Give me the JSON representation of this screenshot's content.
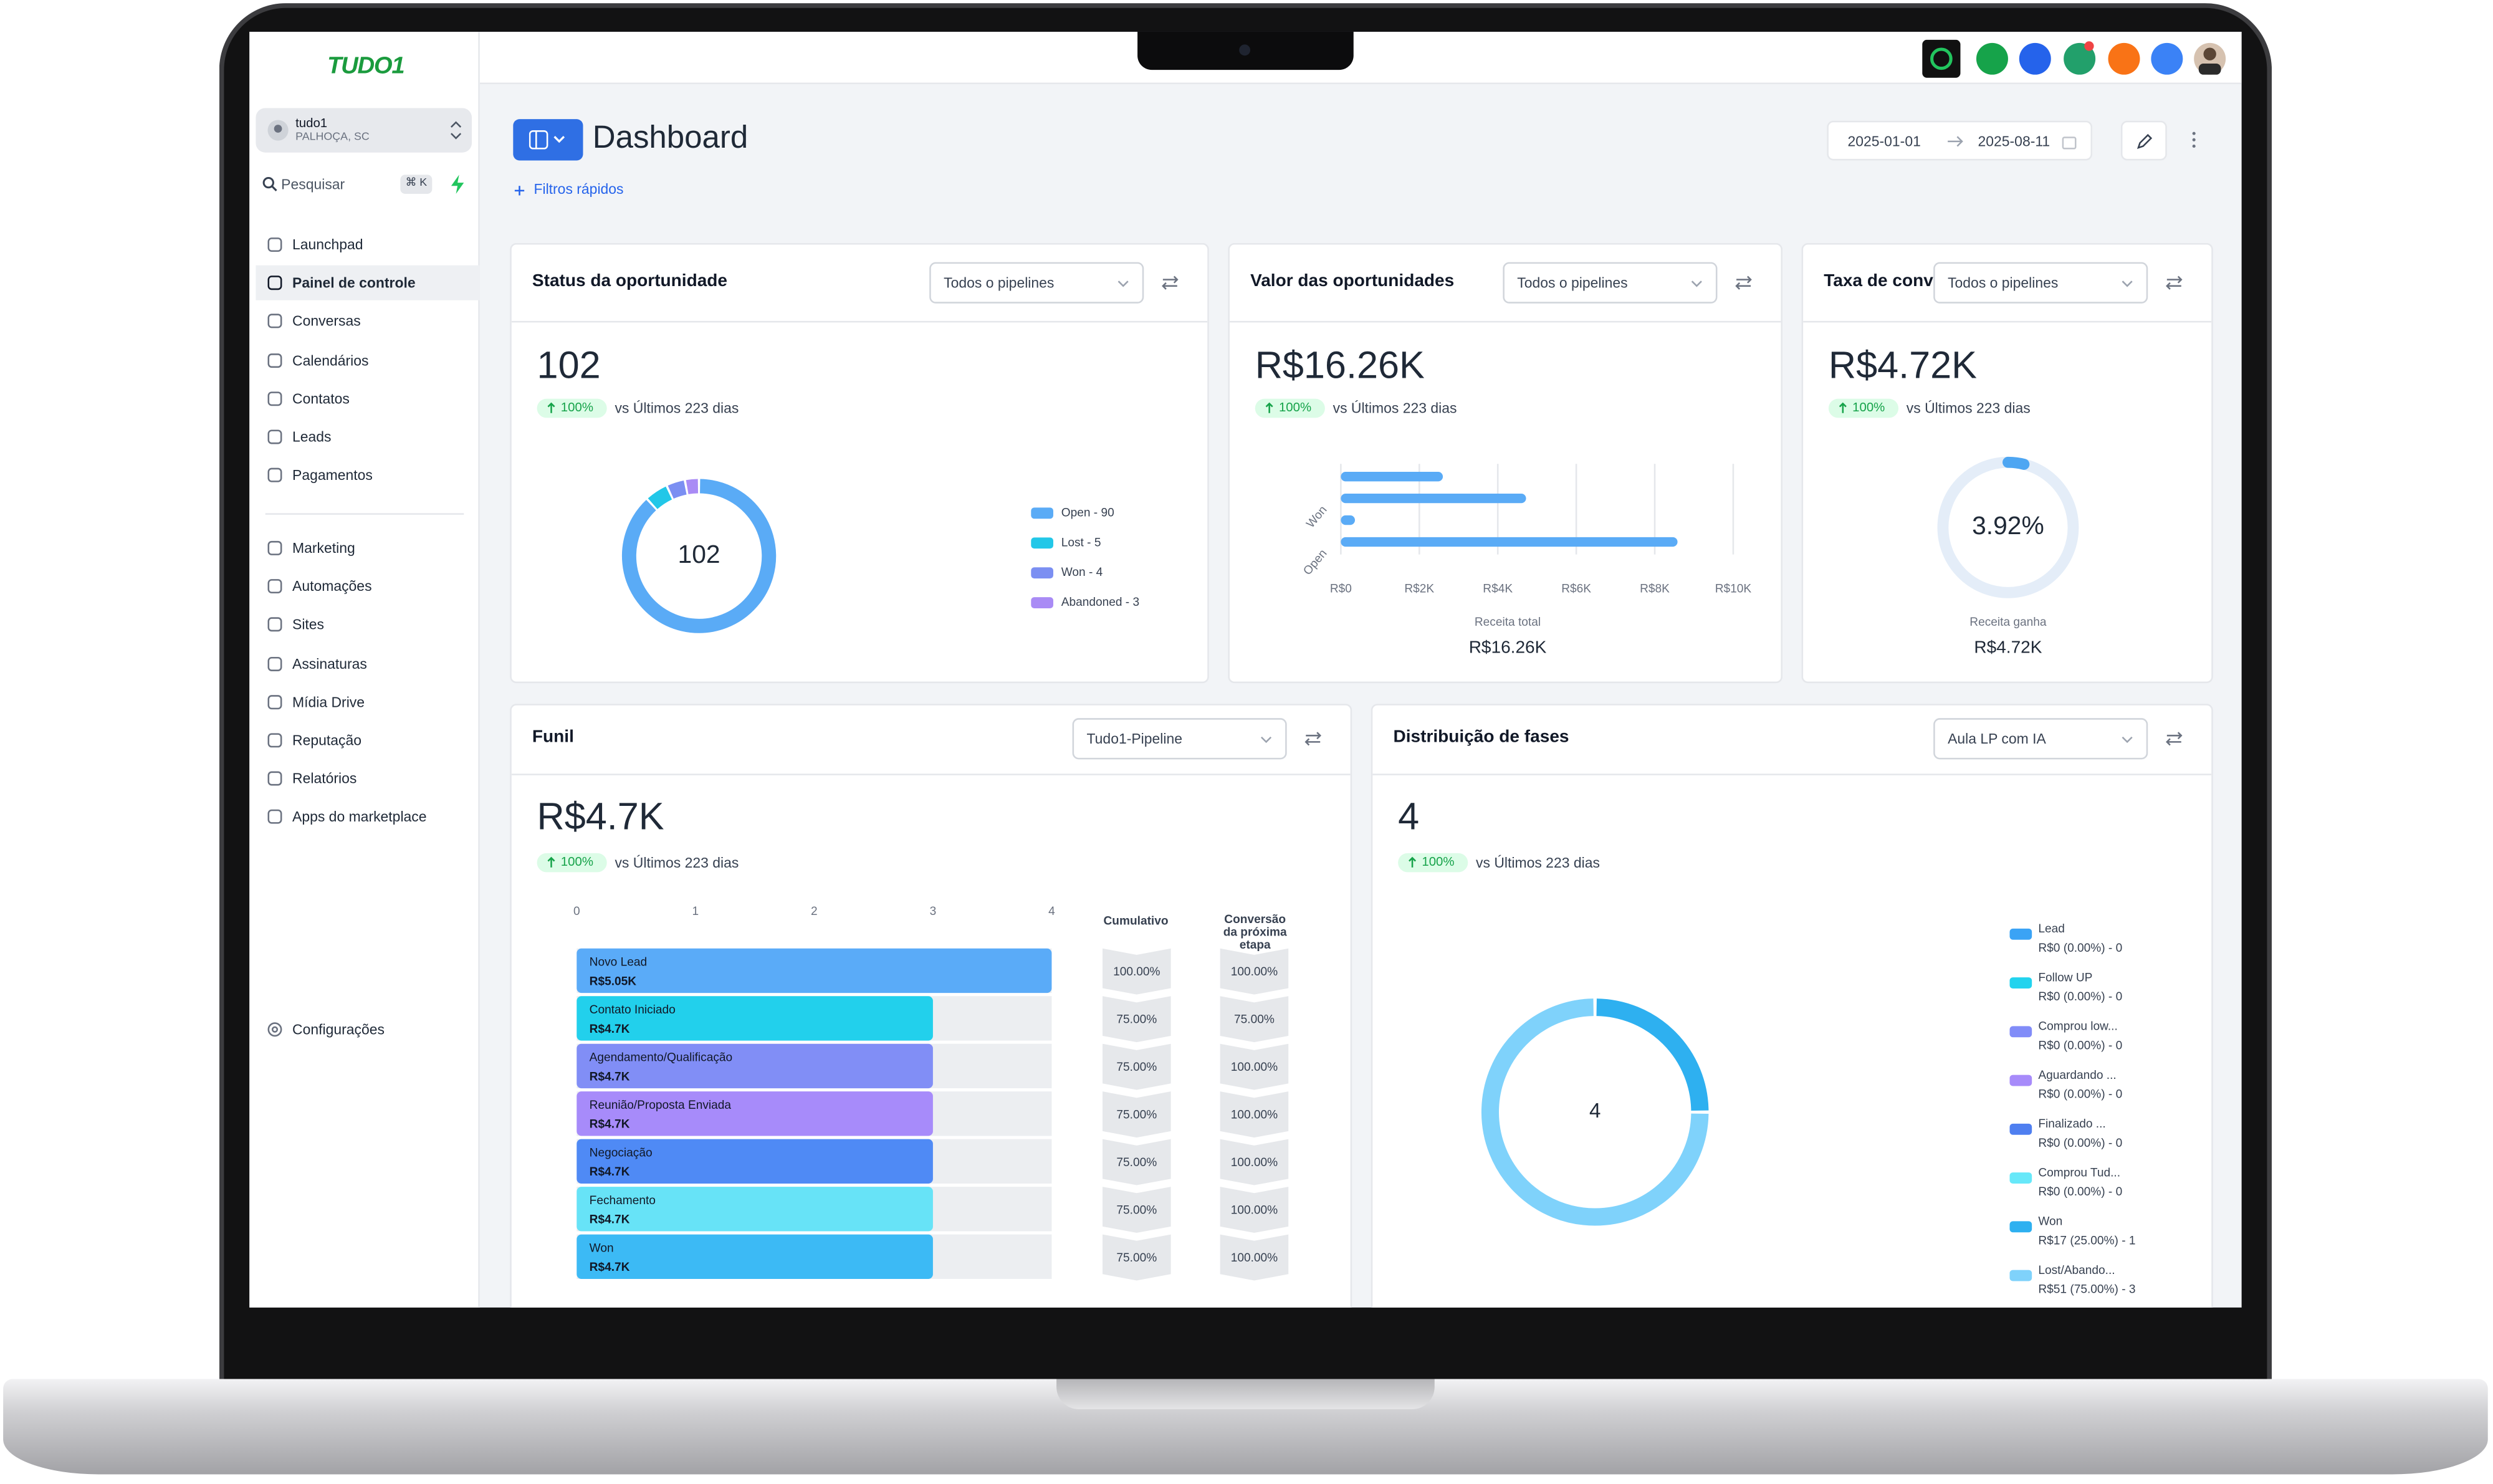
{
  "brand": {
    "logo": "TUDO1"
  },
  "sidebar": {
    "account": {
      "name": "tudo1",
      "location": "PALHOÇA, SC"
    },
    "search": {
      "placeholder": "Pesquisar",
      "shortcut": "⌘ K"
    },
    "nav_groups": [
      [
        {
          "label": "Launchpad"
        },
        {
          "label": "Painel de controle",
          "active": true
        },
        {
          "label": "Conversas"
        },
        {
          "label": "Calendários"
        },
        {
          "label": "Contatos"
        },
        {
          "label": "Leads"
        },
        {
          "label": "Pagamentos"
        }
      ],
      [
        {
          "label": "Marketing"
        },
        {
          "label": "Automações"
        },
        {
          "label": "Sites"
        },
        {
          "label": "Assinaturas"
        },
        {
          "label": "Mídia Drive"
        },
        {
          "label": "Reputação"
        },
        {
          "label": "Relatórios"
        },
        {
          "label": "Apps do marketplace"
        }
      ]
    ],
    "settings": "Configurações"
  },
  "header": {
    "title": "Dashboard",
    "quick_filters": "Filtros rápidos",
    "date_start": "2025-01-01",
    "date_end": "2025-08-11"
  },
  "cards": [
    {
      "title": "Status da oportunidade",
      "filter": "Todos o pipelines",
      "value": "102",
      "change": "100%",
      "comparison": "vs Últimos 223 dias",
      "chart": {
        "type": "donut",
        "segments": [
          {
            "label": "Open - 90",
            "value": 90,
            "color": "#5aabf6"
          },
          {
            "label": "Lost - 5",
            "value": 5,
            "color": "#22c7e8"
          },
          {
            "label": "Won - 4",
            "value": 4,
            "color": "#7b8ff2"
          },
          {
            "label": "Abandoned - 3",
            "value": 3,
            "color": "#a98bf5"
          }
        ]
      }
    },
    {
      "title": "Valor das oportunidades",
      "filter": "Todos o pipelines",
      "value": "R$16.26K",
      "change": "100%",
      "comparison": "vs Últimos 223 dias",
      "chart": {
        "type": "bar",
        "orientation": "horizontal",
        "categories": [
          null,
          "Won",
          null,
          "Open"
        ],
        "values": [
          2600,
          4720,
          360,
          8580
        ],
        "color": "#5aabf6",
        "xlim": [
          0,
          10000
        ],
        "xticks": [
          {
            "value": 0,
            "label": "R$0"
          },
          {
            "value": 2000,
            "label": "R$2K"
          },
          {
            "value": 4000,
            "label": "R$4K"
          },
          {
            "value": 6000,
            "label": "R$6K"
          },
          {
            "value": 8000,
            "label": "R$8K"
          },
          {
            "value": 10000,
            "label": "R$10K"
          }
        ],
        "grid": true,
        "total_label": "Receita total",
        "total_value": "R$16.26K"
      }
    },
    {
      "title": "Taxa de conv",
      "filter": "Todos o pipelines",
      "value": "R$4.72K",
      "change": "100%",
      "comparison": "vs Últimos 223 dias",
      "chart": {
        "type": "gauge",
        "value": 3.92,
        "value_label": "3.92%",
        "range": [
          0,
          100
        ],
        "color": "#4ea6f2",
        "track_color": "#e4edf8",
        "caption": "Receita ganha",
        "caption_value": "R$4.72K"
      }
    },
    {
      "title": "Funil",
      "filter": "Tudo1-Pipeline",
      "value": "R$4.7K",
      "change": "100%",
      "comparison": "vs Últimos 223 dias",
      "chart": {
        "type": "funnel",
        "xlim": [
          0,
          4
        ],
        "xticks": [
          0,
          1,
          2,
          3,
          4
        ],
        "cumulative_header": "Cumulativo",
        "conversion_header": "Conversão da próxima etapa",
        "stages": [
          {
            "name": "Novo Lead",
            "value": 4,
            "amount": "R$5.05K",
            "cumulative": "100.00%",
            "next_conversion": "100.00%",
            "color": "#5aabf8"
          },
          {
            "name": "Contato Iniciado",
            "value": 3,
            "amount": "R$4.7K",
            "cumulative": "75.00%",
            "next_conversion": "75.00%",
            "color": "#22d0ec"
          },
          {
            "name": "Agendamento/Qualificação",
            "value": 3,
            "amount": "R$4.7K",
            "cumulative": "75.00%",
            "next_conversion": "100.00%",
            "color": "#818ef6"
          },
          {
            "name": "Reunião/Proposta Enviada",
            "value": 3,
            "amount": "R$4.7K",
            "cumulative": "75.00%",
            "next_conversion": "100.00%",
            "color": "#a78bfa"
          },
          {
            "name": "Negociação",
            "value": 3,
            "amount": "R$4.7K",
            "cumulative": "75.00%",
            "next_conversion": "100.00%",
            "color": "#4f8af5"
          },
          {
            "name": "Fechamento",
            "value": 3,
            "amount": "R$4.7K",
            "cumulative": "75.00%",
            "next_conversion": "100.00%",
            "color": "#67e3f7"
          },
          {
            "name": "Won",
            "value": 3,
            "amount": "R$4.7K",
            "cumulative": "75.00%",
            "next_conversion": "100.00%",
            "color": "#3cbaf5"
          }
        ]
      }
    },
    {
      "title": "Distribuição de fases",
      "filter": "Aula LP com IA",
      "value": "4",
      "change": "100%",
      "comparison": "vs Últimos 223 dias",
      "chart": {
        "type": "donut",
        "segments": [
          {
            "name": "Lead",
            "detail": "R$0 (0.00%) - 0",
            "value": 0,
            "color": "#3ba3f5"
          },
          {
            "name": "Follow UP",
            "detail": "R$0 (0.00%) - 0",
            "value": 0,
            "color": "#22d3ee"
          },
          {
            "name": "Comprou low...",
            "detail": "R$0 (0.00%) - 0",
            "value": 0,
            "color": "#818cf8"
          },
          {
            "name": "Aguardando ...",
            "detail": "R$0 (0.00%) - 0",
            "value": 0,
            "color": "#a78bfa"
          },
          {
            "name": "Finalizado ...",
            "detail": "R$0 (0.00%) - 0",
            "value": 0,
            "color": "#4f7ff0"
          },
          {
            "name": "Comprou Tud...",
            "detail": "R$0 (0.00%) - 0",
            "value": 0,
            "color": "#67e8f9"
          },
          {
            "name": "Won",
            "detail": "R$17 (25.00%) - 1",
            "value": 1,
            "color": "#2eb0f0"
          },
          {
            "name": "Lost/Abando...",
            "detail": "R$51 (75.00%) - 3",
            "value": 3,
            "color": "#7fd2fb"
          }
        ]
      }
    }
  ]
}
